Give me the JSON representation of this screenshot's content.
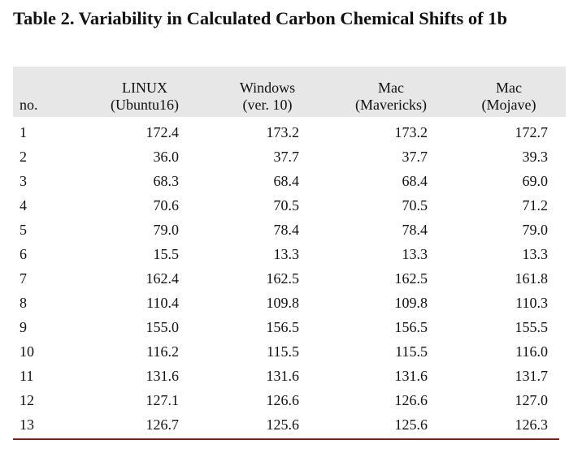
{
  "title": "Table 2. Variability in Calculated Carbon Chemical Shifts of 1b",
  "headers": {
    "no": "no.",
    "col1": [
      "LINUX",
      "(Ubuntu16)"
    ],
    "col2": [
      "Windows",
      "(ver. 10)"
    ],
    "col3": [
      "Mac",
      "(Mavericks)"
    ],
    "col4": [
      "Mac",
      "(Mojave)"
    ]
  },
  "rows": [
    [
      "1",
      "172.4",
      "173.2",
      "173.2",
      "172.7"
    ],
    [
      "2",
      "36.0",
      "37.7",
      "37.7",
      "39.3"
    ],
    [
      "3",
      "68.3",
      "68.4",
      "68.4",
      "69.0"
    ],
    [
      "4",
      "70.6",
      "70.5",
      "70.5",
      "71.2"
    ],
    [
      "5",
      "79.0",
      "78.4",
      "78.4",
      "79.0"
    ],
    [
      "6",
      "15.5",
      "13.3",
      "13.3",
      "13.3"
    ],
    [
      "7",
      "162.4",
      "162.5",
      "162.5",
      "161.8"
    ],
    [
      "8",
      "110.4",
      "109.8",
      "109.8",
      "110.3"
    ],
    [
      "9",
      "155.0",
      "156.5",
      "156.5",
      "155.5"
    ],
    [
      "10",
      "116.2",
      "115.5",
      "115.5",
      "116.0"
    ],
    [
      "11",
      "131.6",
      "131.6",
      "131.6",
      "131.7"
    ],
    [
      "12",
      "127.1",
      "126.6",
      "126.6",
      "127.0"
    ],
    [
      "13",
      "126.7",
      "125.6",
      "125.6",
      "126.3"
    ]
  ],
  "colors": {
    "header_bg": "#e7e7e7",
    "bottom_rule": "#8b1a1a"
  }
}
